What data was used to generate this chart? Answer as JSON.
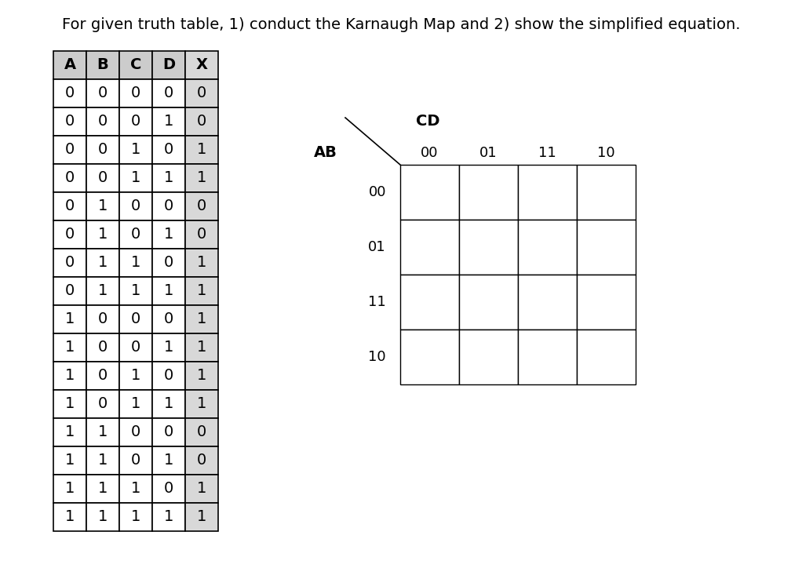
{
  "title": "For given truth table, 1) conduct the Karnaugh Map and 2) show the simplified equation.",
  "truth_table": {
    "headers": [
      "A",
      "B",
      "C",
      "D",
      "X"
    ],
    "rows": [
      [
        0,
        0,
        0,
        0,
        0
      ],
      [
        0,
        0,
        0,
        1,
        0
      ],
      [
        0,
        0,
        1,
        0,
        1
      ],
      [
        0,
        0,
        1,
        1,
        1
      ],
      [
        0,
        1,
        0,
        0,
        0
      ],
      [
        0,
        1,
        0,
        1,
        0
      ],
      [
        0,
        1,
        1,
        0,
        1
      ],
      [
        0,
        1,
        1,
        1,
        1
      ],
      [
        1,
        0,
        0,
        0,
        1
      ],
      [
        1,
        0,
        0,
        1,
        1
      ],
      [
        1,
        0,
        1,
        0,
        1
      ],
      [
        1,
        0,
        1,
        1,
        1
      ],
      [
        1,
        1,
        0,
        0,
        0
      ],
      [
        1,
        1,
        0,
        1,
        0
      ],
      [
        1,
        1,
        1,
        0,
        1
      ],
      [
        1,
        1,
        1,
        1,
        1
      ]
    ]
  },
  "kmap": {
    "cd_label": "CD",
    "ab_label": "AB",
    "cd_cols": [
      "00",
      "01",
      "11",
      "10"
    ],
    "ab_rows": [
      "00",
      "01",
      "11",
      "10"
    ]
  },
  "bg_color": "#ffffff",
  "header_bg": "#cccccc",
  "x_col_bg": "#d8d8d8",
  "font_size_title": 14,
  "font_size_table": 14,
  "font_size_kmap": 13
}
